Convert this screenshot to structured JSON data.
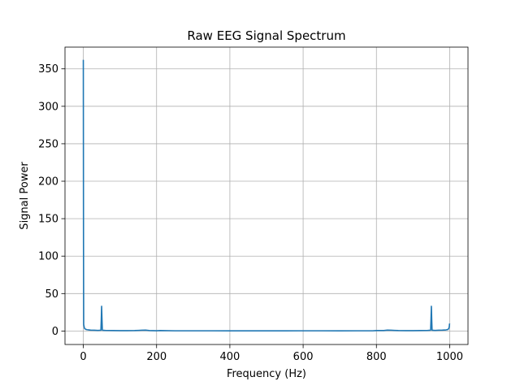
{
  "chart_data": {
    "type": "line",
    "title": "Raw EEG Signal Spectrum",
    "xlabel": "Frequency (Hz)",
    "ylabel": "Signal Power",
    "xlim": [
      -50,
      1050
    ],
    "ylim": [
      -18,
      379
    ],
    "xticks": [
      0,
      200,
      400,
      600,
      800,
      1000
    ],
    "xtick_labels": [
      "0",
      "200",
      "400",
      "600",
      "800",
      "1000"
    ],
    "yticks": [
      0,
      50,
      100,
      150,
      200,
      250,
      300,
      350
    ],
    "ytick_labels": [
      "0",
      "50",
      "100",
      "150",
      "200",
      "250",
      "300",
      "350"
    ],
    "grid": true,
    "legend": "none",
    "series": [
      {
        "color": "#1f77b4",
        "x": [
          0,
          0.5,
          1,
          2,
          3,
          4,
          6,
          8,
          10,
          15,
          20,
          30,
          40,
          48,
          49,
          50,
          51,
          52,
          60,
          80,
          100,
          120,
          140,
          150,
          160,
          170,
          180,
          200,
          210,
          250,
          300,
          350,
          400,
          450,
          500,
          550,
          600,
          650,
          700,
          750,
          790,
          800,
          820,
          830,
          840,
          850,
          860,
          880,
          900,
          920,
          940,
          948,
          949,
          950,
          951,
          952,
          960,
          970,
          980,
          990,
          995,
          996,
          997,
          998,
          999,
          999.5,
          1000
        ],
        "y": [
          362,
          120,
          9,
          6,
          4,
          3,
          2.5,
          2,
          1.8,
          1.5,
          1.2,
          1,
          0.8,
          1,
          15,
          33,
          15,
          1,
          0.8,
          0.6,
          0.5,
          0.5,
          0.6,
          0.8,
          1,
          1.2,
          0.6,
          0.4,
          0.6,
          0.3,
          0.3,
          0.3,
          0.2,
          0.2,
          0.2,
          0.2,
          0.3,
          0.3,
          0.2,
          0.3,
          0.3,
          0.6,
          0.6,
          1.2,
          1,
          0.8,
          0.6,
          0.5,
          0.5,
          0.6,
          0.8,
          1,
          15,
          33,
          15,
          1,
          0.8,
          1,
          1.2,
          1.5,
          2,
          2.5,
          3,
          4,
          6,
          9,
          10
        ]
      }
    ]
  }
}
